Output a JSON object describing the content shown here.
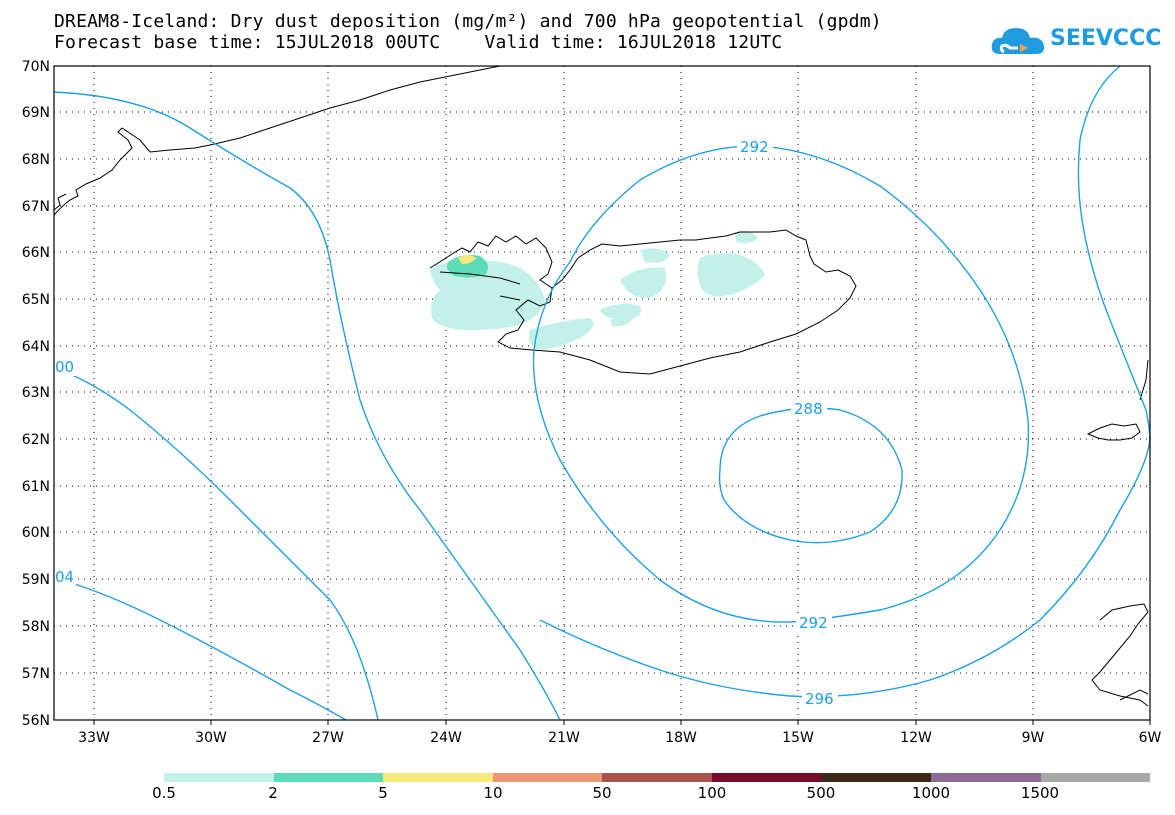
{
  "header": {
    "title_line1": "DREAM8-Iceland: Dry dust deposition (mg/m²) and 700 hPa geopotential (gpdm)",
    "title_line2": "Forecast base time: 15JUL2018 00UTC    Valid time: 16JUL2018 12UTC"
  },
  "logo": {
    "text": "SEEVCCC",
    "color": "#1f9be0"
  },
  "map": {
    "lat_labels": [
      "70N",
      "69N",
      "68N",
      "67N",
      "66N",
      "65N",
      "64N",
      "63N",
      "62N",
      "61N",
      "60N",
      "59N",
      "58N",
      "57N",
      "56N"
    ],
    "lon_labels": [
      "33W",
      "30W",
      "27W",
      "24W",
      "21W",
      "18W",
      "15W",
      "12W",
      "9W",
      "6W"
    ],
    "contour_color": "#1ea0e6",
    "contour_labels": [
      "292",
      "288",
      "292",
      "296",
      "00",
      "04"
    ]
  },
  "legend": {
    "colors": [
      "#c3f1ea",
      "#5ddcb8",
      "#f8e97b",
      "#ee9572",
      "#a8524a",
      "#7b0c2c",
      "#3e2a1b",
      "#8c6a92",
      "#a8a8a8"
    ],
    "labels": [
      "0.5",
      "2",
      "5",
      "10",
      "50",
      "100",
      "500",
      "1000",
      "1500"
    ]
  }
}
